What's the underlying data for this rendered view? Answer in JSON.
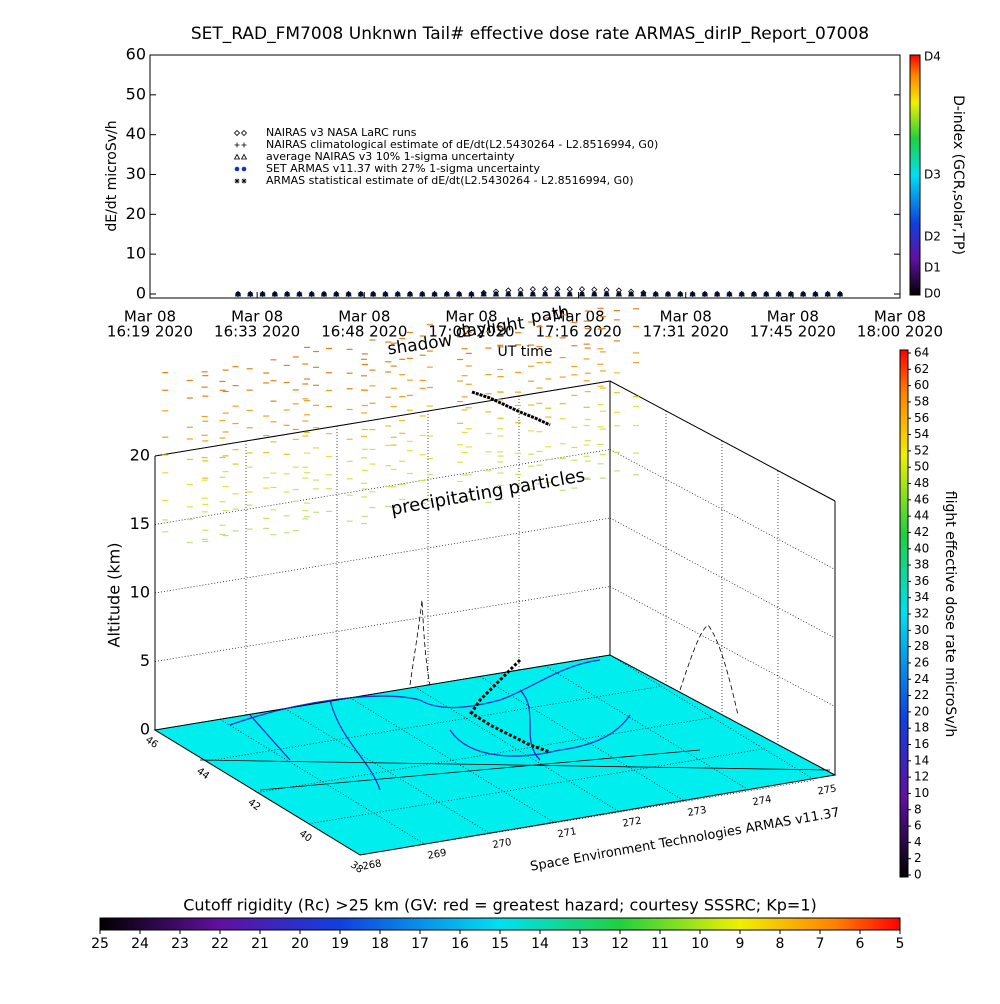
{
  "chart_data": [
    {
      "type": "scatter",
      "title": "SET_RAD_FM7008  Unknwn Tail#  effective dose rate ARMAS_dirIP_Report_07008",
      "ylabel": "dE/dt microSv/h",
      "xlabel": "UT time",
      "ylim": [
        0,
        60
      ],
      "yticks": [
        0,
        10,
        20,
        30,
        40,
        50,
        60
      ],
      "xticks": [
        [
          "Mar 08",
          "16:19 2020"
        ],
        [
          "Mar 08",
          "16:33 2020"
        ],
        [
          "Mar 08",
          "16:48 2020"
        ],
        [
          "Mar 08",
          "17:02 2020"
        ],
        [
          "Mar 08",
          "17:16 2020"
        ],
        [
          "Mar 08",
          "17:31 2020"
        ],
        [
          "Mar 08",
          "17:45 2020"
        ],
        [
          "Mar 08",
          "18:00 2020"
        ]
      ],
      "series": [
        {
          "name": "NAIRAS v3 NASA LaRC runs",
          "marker": "diamond",
          "color": "#000000",
          "values": [
            0,
            0,
            0,
            0,
            0,
            0,
            0,
            0,
            0,
            0,
            0,
            0,
            0,
            0,
            0,
            0,
            0,
            0,
            0,
            0,
            0.3,
            0.6,
            0.9,
            1,
            1.2,
            1.2,
            1.2,
            1.2,
            1.2,
            1.1,
            1,
            0.9,
            0.6,
            0.3,
            0,
            0,
            0,
            0,
            0,
            0,
            0,
            0,
            0,
            0,
            0,
            0,
            0,
            0,
            0,
            0
          ]
        },
        {
          "name": "NAIRAS climatological estimate of dE/dt(L2.5430264 - L2.8516994, G0)",
          "marker": "plus",
          "color": "#000000",
          "values": [
            0,
            0,
            0,
            0,
            0,
            0,
            0,
            0,
            0,
            0,
            0,
            0,
            0,
            0,
            0,
            0,
            0,
            0,
            0,
            0,
            0,
            0,
            0,
            0,
            0,
            0,
            0,
            0,
            0,
            0,
            0,
            0,
            0,
            0,
            0,
            0,
            0,
            0,
            0,
            0,
            0,
            0,
            0,
            0,
            0,
            0,
            0,
            0,
            0,
            0
          ]
        },
        {
          "name": "average NAIRAS v3 10% 1-sigma uncertainty",
          "marker": "triangle",
          "color": "#000000",
          "values": [
            0,
            0,
            0,
            0,
            0,
            0,
            0,
            0,
            0,
            0,
            0,
            0,
            0,
            0,
            0,
            0,
            0,
            0,
            0,
            0,
            0,
            0,
            0,
            0,
            0,
            0,
            0,
            0,
            0,
            0,
            0,
            0,
            0,
            0,
            0,
            0,
            0,
            0,
            0,
            0,
            0,
            0,
            0,
            0,
            0,
            0,
            0,
            0,
            0,
            0
          ]
        },
        {
          "name": "SET ARMAS v11.37 with 27% 1-sigma uncertainty",
          "marker": "dot",
          "color": "#1030d0",
          "values": [
            0,
            0,
            0,
            0,
            0,
            0,
            0,
            0,
            0,
            0,
            0,
            0,
            0,
            0,
            0,
            0,
            0,
            0,
            0,
            0,
            0,
            0,
            0,
            0,
            0,
            0,
            0,
            0,
            0,
            0,
            0,
            0,
            0,
            0,
            0,
            0,
            0,
            0,
            0,
            0,
            0,
            0,
            0,
            0,
            0,
            0,
            0,
            0,
            0,
            0
          ]
        },
        {
          "name": "ARMAS statistical estimate of dE/dt(L2.5430264 - L2.8516994, G0)",
          "marker": "asterisk",
          "color": "#000000",
          "values": [
            0,
            0,
            0,
            0,
            0,
            0,
            0,
            0,
            0,
            0,
            0,
            0,
            0,
            0,
            0,
            0,
            0,
            0,
            0,
            0,
            0,
            0,
            0,
            0,
            0,
            0,
            0,
            0,
            0,
            0,
            0,
            0,
            0,
            0,
            0,
            0,
            0,
            0,
            0,
            0,
            0,
            0,
            0,
            0,
            0,
            0,
            0,
            0,
            0,
            0
          ]
        }
      ],
      "colorbar": {
        "label": "D-index (GCR,solar,TP)",
        "ticks": [
          "D4",
          "D3",
          "D2",
          "D1",
          "D0"
        ]
      }
    },
    {
      "type": "plot3d",
      "zlabel": "Altitude (km)",
      "zlim": [
        0,
        20
      ],
      "zticks": [
        0,
        5,
        10,
        15,
        20
      ],
      "latticks": [
        46,
        44,
        42,
        40,
        38
      ],
      "lonticks": [
        268,
        269,
        270,
        271,
        272,
        273,
        274,
        275
      ],
      "annotations": [
        "precipitating particles",
        "shadow",
        "daylight",
        "path"
      ],
      "credit": "Space Environment Technologies ARMAS v11.37",
      "colorbar": {
        "label": "flight effective dose rate microSv/h",
        "lim": [
          0,
          64
        ],
        "ticks": [
          0,
          2,
          4,
          6,
          8,
          10,
          12,
          14,
          16,
          18,
          20,
          22,
          24,
          26,
          28,
          30,
          32,
          34,
          36,
          38,
          40,
          42,
          44,
          46,
          48,
          50,
          52,
          54,
          56,
          58,
          60,
          62,
          64
        ]
      }
    },
    {
      "type": "colorbar",
      "title": "Cutoff rigidity (Rc) >25 km (GV: red = greatest hazard; courtesy SSSRC; Kp=1)",
      "lim": [
        25,
        5
      ],
      "ticks": [
        25,
        24,
        23,
        22,
        21,
        20,
        19,
        18,
        17,
        16,
        15,
        14,
        13,
        12,
        11,
        10,
        9,
        8,
        7,
        6,
        5
      ]
    }
  ]
}
